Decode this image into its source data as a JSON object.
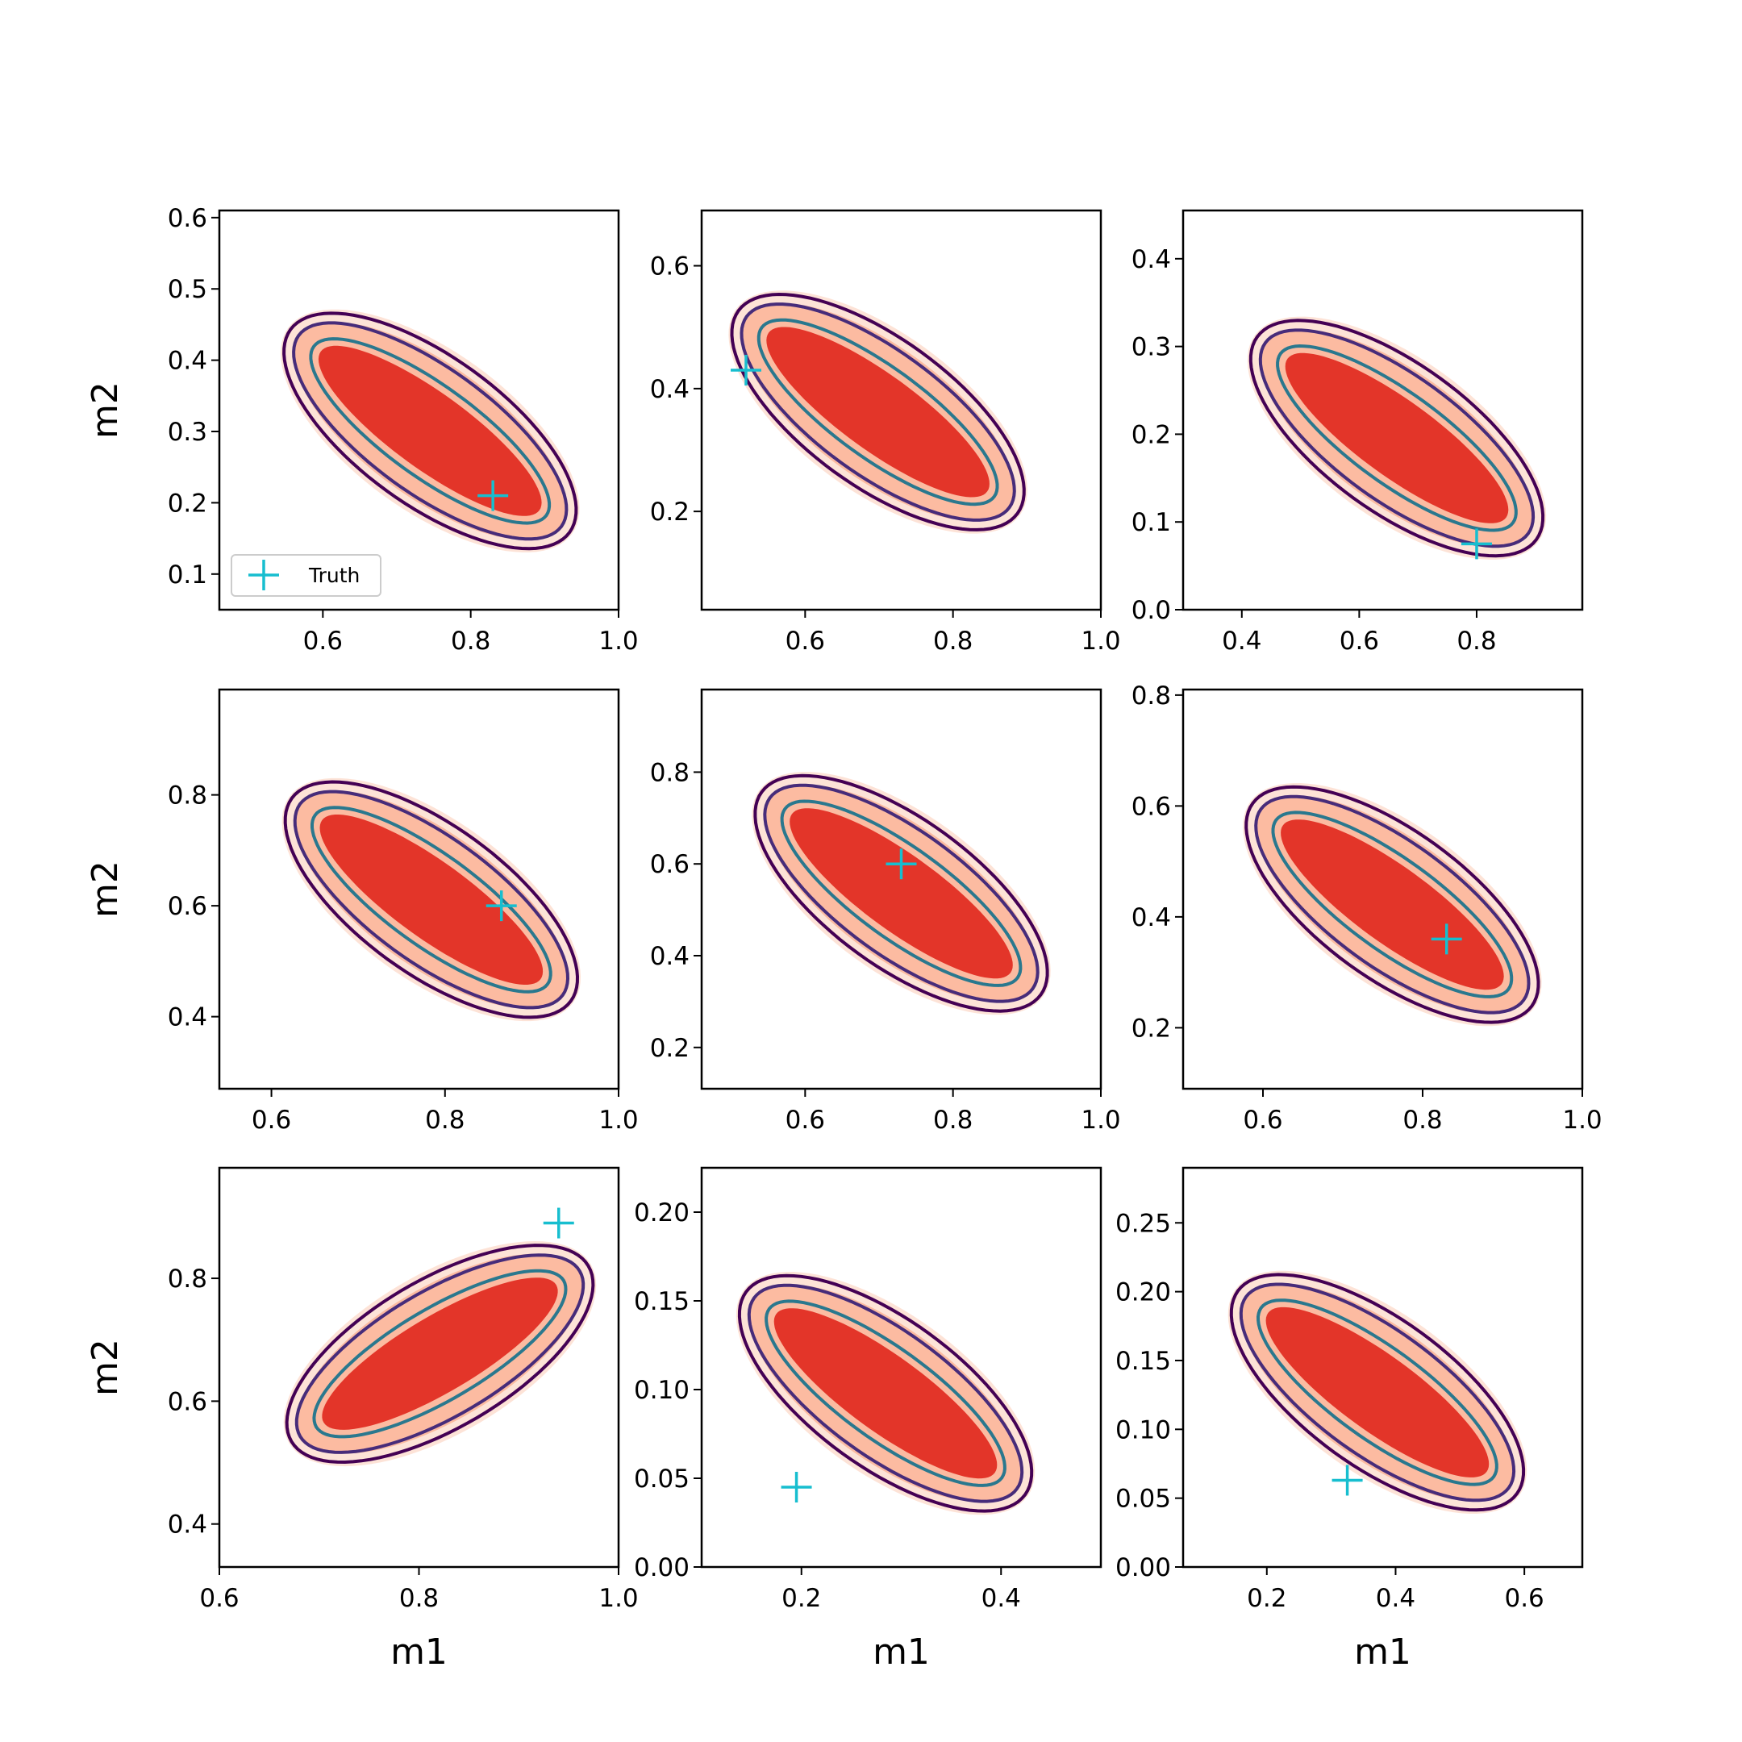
{
  "colors": {
    "fill_light": "#fde3d7",
    "fill_mid": "#fcbba1",
    "fill_dark": "#e33529",
    "contour_outer": "#440154",
    "contour_mid": "#472c7a",
    "contour_inner": "#2a788e",
    "truth": "#17becf"
  },
  "legend": {
    "marker_label": "Truth"
  },
  "chart_data": [
    {
      "type": "contour",
      "xlabel": "",
      "ylabel": "m2",
      "xlim": [
        0.46,
        1.0
      ],
      "ylim": [
        0.05,
        0.61
      ],
      "xticks": [
        0.6,
        0.8,
        1.0
      ],
      "yticks": [
        0.1,
        0.2,
        0.3,
        0.4,
        0.5,
        0.6
      ],
      "xtick_labels": [
        "0.6",
        "0.8",
        "1.0"
      ],
      "ytick_labels": [
        "0.1",
        "0.2",
        "0.3",
        "0.4",
        "0.5",
        "0.6"
      ],
      "truth": [
        0.83,
        0.21
      ],
      "dir": -1,
      "cross": 0.06,
      "legend": "lower-left"
    },
    {
      "type": "contour",
      "xlabel": "",
      "ylabel": "",
      "xlim": [
        0.46,
        1.0
      ],
      "ylim": [
        0.04,
        0.69
      ],
      "xticks": [
        0.6,
        0.8,
        1.0
      ],
      "yticks": [
        0.2,
        0.4,
        0.6
      ],
      "xtick_labels": [
        "0.6",
        "0.8",
        "1.0"
      ],
      "ytick_labels": [
        "0.2",
        "0.4",
        "0.6"
      ],
      "truth": [
        0.52,
        0.43
      ],
      "dir": -1,
      "cross": 0.07
    },
    {
      "type": "contour",
      "xlabel": "",
      "ylabel": "",
      "xlim": [
        0.3,
        0.98
      ],
      "ylim": [
        0.0,
        0.455
      ],
      "xticks": [
        0.4,
        0.6,
        0.8
      ],
      "yticks": [
        0.0,
        0.1,
        0.2,
        0.3,
        0.4
      ],
      "xtick_labels": [
        "0.4",
        "0.6",
        "0.8"
      ],
      "ytick_labels": [
        "0.0",
        "0.1",
        "0.2",
        "0.3",
        "0.4"
      ],
      "truth": [
        0.8,
        0.075
      ],
      "dir": -1,
      "cross": 0.05
    },
    {
      "type": "contour",
      "xlabel": "",
      "ylabel": "m2",
      "xlim": [
        0.54,
        1.0
      ],
      "ylim": [
        0.27,
        0.99
      ],
      "xticks": [
        0.6,
        0.8,
        1.0
      ],
      "yticks": [
        0.4,
        0.6,
        0.8
      ],
      "xtick_labels": [
        "0.6",
        "0.8",
        "1.0"
      ],
      "ytick_labels": [
        "0.4",
        "0.6",
        "0.8"
      ],
      "truth": [
        0.865,
        0.6
      ],
      "dir": -1,
      "cross": 0.12
    },
    {
      "type": "contour",
      "xlabel": "",
      "ylabel": "",
      "xlim": [
        0.46,
        1.0
      ],
      "ylim": [
        0.11,
        0.98
      ],
      "xticks": [
        0.6,
        0.8,
        1.0
      ],
      "yticks": [
        0.2,
        0.4,
        0.6,
        0.8
      ],
      "xtick_labels": [
        "0.6",
        "0.8",
        "1.0"
      ],
      "ytick_labels": [
        "0.2",
        "0.4",
        "0.6",
        "0.8"
      ],
      "truth": [
        0.73,
        0.6
      ],
      "dir": -1,
      "cross": 0.12
    },
    {
      "type": "contour",
      "xlabel": "",
      "ylabel": "",
      "xlim": [
        0.5,
        1.0
      ],
      "ylim": [
        0.09,
        0.81
      ],
      "xticks": [
        0.6,
        0.8,
        1.0
      ],
      "yticks": [
        0.2,
        0.4,
        0.6,
        0.8
      ],
      "xtick_labels": [
        "0.6",
        "0.8",
        "1.0"
      ],
      "ytick_labels": [
        "0.2",
        "0.4",
        "0.6",
        "0.8"
      ],
      "truth": [
        0.83,
        0.36
      ],
      "dir": -1,
      "cross": 0.12
    },
    {
      "type": "contour",
      "xlabel": "m1",
      "ylabel": "m2",
      "xlim": [
        0.6,
        1.0
      ],
      "ylim": [
        0.33,
        0.98
      ],
      "xticks": [
        0.6,
        0.8,
        1.0
      ],
      "yticks": [
        0.4,
        0.6,
        0.8
      ],
      "xtick_labels": [
        "0.6",
        "0.8",
        "1.0"
      ],
      "ytick_labels": [
        "0.4",
        "0.6",
        "0.8"
      ],
      "truth": [
        0.94,
        0.89
      ],
      "dir": 1,
      "cross": 0.1
    },
    {
      "type": "contour",
      "xlabel": "m1",
      "ylabel": "",
      "xlim": [
        0.1,
        0.5
      ],
      "ylim": [
        0.0,
        0.225
      ],
      "xticks": [
        0.2,
        0.4
      ],
      "yticks": [
        0.0,
        0.05,
        0.1,
        0.15,
        0.2
      ],
      "xtick_labels": [
        "0.2",
        "0.4"
      ],
      "ytick_labels": [
        "0.00",
        "0.05",
        "0.10",
        "0.15",
        "0.20"
      ],
      "truth": [
        0.195,
        0.045
      ],
      "dir": -1,
      "cross": 0.05
    },
    {
      "type": "contour",
      "xlabel": "m1",
      "ylabel": "",
      "xlim": [
        0.07,
        0.69
      ],
      "ylim": [
        0.0,
        0.29
      ],
      "xticks": [
        0.2,
        0.4,
        0.6
      ],
      "yticks": [
        0.0,
        0.05,
        0.1,
        0.15,
        0.2,
        0.25
      ],
      "xtick_labels": [
        "0.2",
        "0.4",
        "0.6"
      ],
      "ytick_labels": [
        "0.00",
        "0.05",
        "0.10",
        "0.15",
        "0.20",
        "0.25"
      ],
      "truth": [
        0.325,
        0.063
      ],
      "dir": -1,
      "cross": 0.05
    }
  ]
}
